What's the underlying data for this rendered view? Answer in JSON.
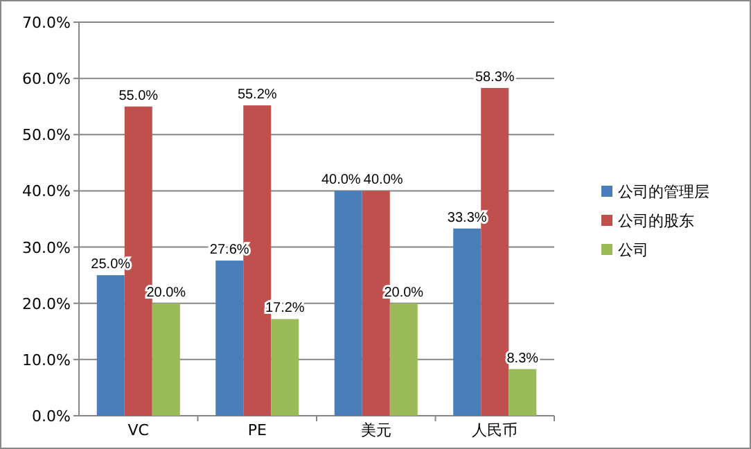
{
  "chart_data": {
    "type": "bar",
    "categories": [
      "VC",
      "PE",
      "美元",
      "人民币"
    ],
    "series": [
      {
        "name": "公司的管理层",
        "color": "#4a7ebb",
        "values": [
          25.0,
          27.6,
          40.0,
          33.3
        ],
        "value_labels": [
          "25.0%",
          "27.6%",
          "40.0%",
          "33.3%"
        ]
      },
      {
        "name": "公司的股东",
        "color": "#c0504d",
        "values": [
          55.0,
          55.2,
          40.0,
          58.3
        ],
        "value_labels": [
          "55.0%",
          "55.2%",
          "40.0%",
          "58.3%"
        ]
      },
      {
        "name": "公司",
        "color": "#9bbb59",
        "values": [
          20.0,
          17.2,
          20.0,
          8.3
        ],
        "value_labels": [
          "20.0%",
          "17.2%",
          "20.0%",
          "8.3%"
        ]
      }
    ],
    "ylim": [
      0,
      70
    ],
    "yticks": [
      {
        "value": 0,
        "label": "0.0%"
      },
      {
        "value": 10,
        "label": "10.0%"
      },
      {
        "value": 20,
        "label": "20.0%"
      },
      {
        "value": 30,
        "label": "30.0%"
      },
      {
        "value": 40,
        "label": "40.0%"
      },
      {
        "value": 50,
        "label": "50.0%"
      },
      {
        "value": 60,
        "label": "60.0%"
      },
      {
        "value": 70,
        "label": "70.0%"
      }
    ],
    "grid": "y",
    "legend": "right"
  }
}
